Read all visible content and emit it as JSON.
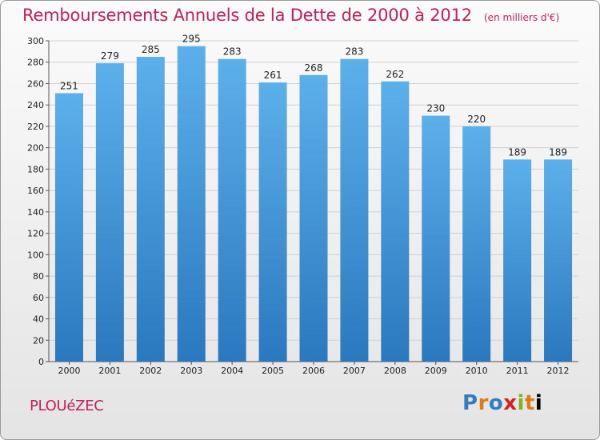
{
  "header": {
    "title": "Remboursements Annuels de la Dette de 2000 à 2012",
    "subtitle": "(en milliers d'€)"
  },
  "commune": "PLOUéZEC",
  "logo": {
    "text": "Proxiti",
    "letters": [
      "P",
      "r",
      "o",
      "x",
      "i",
      "t",
      "i"
    ]
  },
  "colors": {
    "title": "#c41e5a",
    "bar_top": "#5cb0ea",
    "bar_bottom": "#2a78bf",
    "grid": "#d0d0d0"
  },
  "chart_data": {
    "type": "bar",
    "title": "Remboursements Annuels de la Dette de 2000 à 2012",
    "subtitle": "(en milliers d'€)",
    "categories": [
      "2000",
      "2001",
      "2002",
      "2003",
      "2004",
      "2005",
      "2006",
      "2007",
      "2008",
      "2009",
      "2010",
      "2011",
      "2012"
    ],
    "values": [
      251,
      279,
      285,
      295,
      283,
      261,
      268,
      283,
      262,
      230,
      220,
      189,
      189
    ],
    "ylim": [
      0,
      300
    ],
    "yticks": [
      0,
      20,
      40,
      60,
      80,
      100,
      120,
      140,
      160,
      180,
      200,
      220,
      240,
      260,
      280,
      300
    ],
    "grid": true,
    "data_labels": true
  }
}
